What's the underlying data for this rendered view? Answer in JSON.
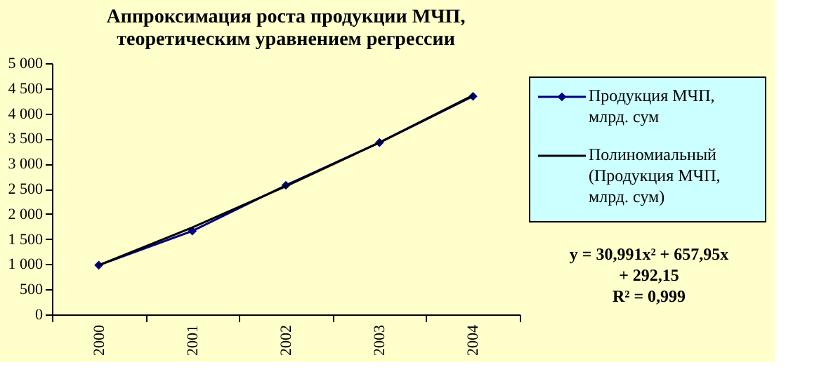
{
  "chart_data": {
    "type": "line",
    "title": "Аппроксимация роста продукции МЧП, теоретическим уравнением регрессии",
    "categories": [
      "2000",
      "2001",
      "2002",
      "2003",
      "2004"
    ],
    "series": [
      {
        "name": "Продукция МЧП, млрд. сум",
        "color": "#000080",
        "values": [
          980,
          1660,
          2570,
          3420,
          4340
        ],
        "marker": "diamond"
      },
      {
        "name": "Полиномиальный (Продукция МЧП, млрд. сум)",
        "color": "#000000",
        "values": [
          980,
          1730,
          2550,
          3420,
          4360
        ],
        "marker": "none"
      }
    ],
    "ylim": [
      0,
      5000
    ],
    "yticks": [
      0,
      500,
      {
        "value": 1000,
        "label": "1 000"
      },
      {
        "value": 1500,
        "label": "1 500"
      },
      {
        "value": 2000,
        "label": "2 000"
      },
      {
        "value": 2500,
        "label": "2 500"
      },
      {
        "value": 3000,
        "label": "3 000"
      },
      {
        "value": 3500,
        "label": "3 500"
      },
      {
        "value": 4000,
        "label": "4 000"
      },
      {
        "value": 4500,
        "label": "4 500"
      },
      {
        "value": 5000,
        "label": "5 000"
      }
    ],
    "grid": false,
    "legend": "right",
    "line_style": "solid",
    "annotations": [
      "y = 30,991x² + 657,95x + 292,15",
      "R² = 0,999"
    ]
  }
}
